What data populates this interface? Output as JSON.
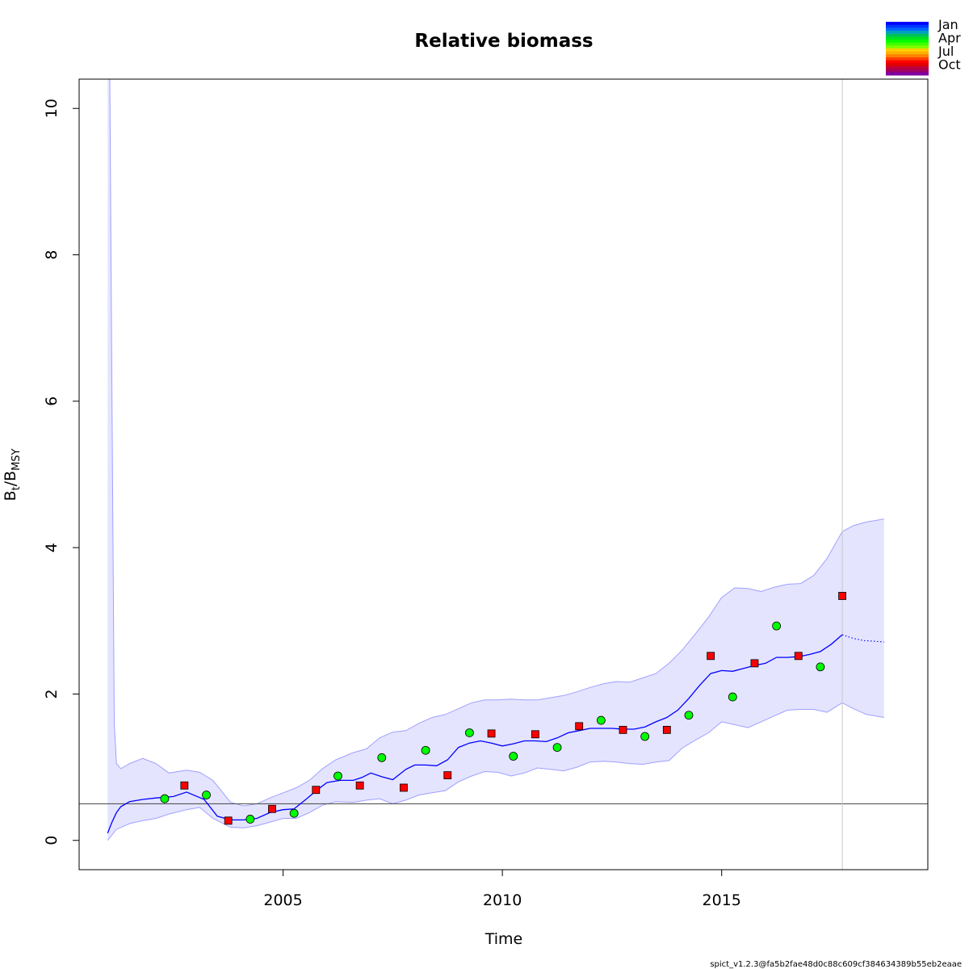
{
  "chart_data": {
    "type": "line",
    "title": "Relative biomass",
    "xlabel": "Time",
    "ylabel": {
      "main": "B",
      "sub1": "t",
      "sep": "/B",
      "sub2": "MSY"
    },
    "xlim": [
      2000.35,
      2019.7
    ],
    "ylim": [
      -0.4,
      10.4
    ],
    "x_ticks": [
      2005,
      2010,
      2015
    ],
    "y_ticks": [
      0,
      2,
      4,
      6,
      8,
      10
    ],
    "reference_line_y": 0.5,
    "vertical_line_x": 2017.75,
    "grid": false,
    "legend_position": "top-right",
    "month_legend": {
      "labels": [
        "Jan",
        "Apr",
        "Jul",
        "Oct"
      ],
      "colors": [
        "#0000FF",
        "#0033FF",
        "#0066FF",
        "#00A0C0",
        "#00C060",
        "#00E020",
        "#00FF00",
        "#40FF00",
        "#80FF00",
        "#FFD000",
        "#FFB000",
        "#FF8000",
        "#FF4000",
        "#FF0000",
        "#E00000",
        "#C0003A",
        "#A00060",
        "#8000A0"
      ]
    },
    "colors": {
      "ci_fill": "#E4E4FF",
      "ci_line": "#A0A0FF",
      "estimate": "#0000FF",
      "reference": "#555555",
      "vline": "#C8C8C8",
      "q1_points": "#00FF00",
      "q4_points": "#FF0000"
    },
    "estimate": {
      "x": [
        2001.0,
        2001.1,
        2001.2,
        2001.3,
        2001.5,
        2001.8,
        2002.1,
        2002.5,
        2002.8,
        2003.2,
        2003.5,
        2003.8,
        2004.1,
        2004.4,
        2004.7,
        2005.0,
        2005.25,
        2005.5,
        2005.8,
        2006.0,
        2006.3,
        2006.6,
        2006.8,
        2007.0,
        2007.25,
        2007.5,
        2007.8,
        2008.0,
        2008.25,
        2008.5,
        2008.75,
        2009.0,
        2009.25,
        2009.5,
        2009.75,
        2010.0,
        2010.25,
        2010.5,
        2010.75,
        2011.0,
        2011.25,
        2011.5,
        2011.75,
        2012.0,
        2012.25,
        2012.5,
        2012.75,
        2013.0,
        2013.25,
        2013.5,
        2013.75,
        2014.0,
        2014.25,
        2014.5,
        2014.75,
        2015.0,
        2015.25,
        2015.5,
        2015.75,
        2016.0,
        2016.25,
        2016.5,
        2016.75,
        2017.0,
        2017.25,
        2017.5,
        2017.75
      ],
      "y": [
        0.1,
        0.25,
        0.38,
        0.46,
        0.53,
        0.56,
        0.58,
        0.6,
        0.66,
        0.56,
        0.33,
        0.28,
        0.28,
        0.3,
        0.38,
        0.42,
        0.43,
        0.55,
        0.7,
        0.79,
        0.82,
        0.82,
        0.86,
        0.92,
        0.87,
        0.83,
        0.97,
        1.03,
        1.03,
        1.02,
        1.1,
        1.27,
        1.33,
        1.36,
        1.33,
        1.29,
        1.32,
        1.36,
        1.36,
        1.35,
        1.4,
        1.47,
        1.5,
        1.53,
        1.53,
        1.53,
        1.52,
        1.52,
        1.55,
        1.62,
        1.68,
        1.78,
        1.94,
        2.12,
        2.28,
        2.32,
        2.31,
        2.35,
        2.39,
        2.42,
        2.5,
        2.5,
        2.51,
        2.54,
        2.58,
        2.68,
        2.81
      ]
    },
    "forecast": {
      "x": [
        2017.75,
        2018.0,
        2018.25,
        2018.5,
        2018.7
      ],
      "y": [
        2.81,
        2.76,
        2.73,
        2.72,
        2.71
      ]
    },
    "ci_upper": {
      "x": [
        2001.0,
        2001.05,
        2001.1,
        2001.15,
        2001.2,
        2001.3,
        2001.5,
        2001.8,
        2002.1,
        2002.4,
        2002.8,
        2003.1,
        2003.4,
        2003.8,
        2004.1,
        2004.4,
        2004.7,
        2005.0,
        2005.3,
        2005.6,
        2005.9,
        2006.2,
        2006.6,
        2006.9,
        2007.2,
        2007.5,
        2007.8,
        2008.1,
        2008.4,
        2008.7,
        2009.0,
        2009.3,
        2009.6,
        2009.9,
        2010.2,
        2010.5,
        2010.8,
        2011.1,
        2011.4,
        2011.7,
        2012.0,
        2012.3,
        2012.6,
        2012.9,
        2013.2,
        2013.5,
        2013.8,
        2014.1,
        2014.4,
        2014.7,
        2015.0,
        2015.3,
        2015.6,
        2015.9,
        2016.2,
        2016.5,
        2016.8,
        2017.1,
        2017.4,
        2017.75,
        2018.0,
        2018.3,
        2018.7
      ],
      "y": [
        10.4,
        10.4,
        6.0,
        1.6,
        1.05,
        0.98,
        1.05,
        1.12,
        1.05,
        0.92,
        0.96,
        0.93,
        0.82,
        0.52,
        0.47,
        0.5,
        0.58,
        0.65,
        0.72,
        0.82,
        0.98,
        1.1,
        1.2,
        1.25,
        1.4,
        1.48,
        1.5,
        1.6,
        1.68,
        1.72,
        1.8,
        1.88,
        1.92,
        1.92,
        1.93,
        1.92,
        1.92,
        1.95,
        1.98,
        2.03,
        2.09,
        2.14,
        2.17,
        2.16,
        2.22,
        2.28,
        2.42,
        2.6,
        2.82,
        3.05,
        3.32,
        3.45,
        3.44,
        3.4,
        3.46,
        3.5,
        3.51,
        3.62,
        3.85,
        4.22,
        4.3,
        4.35,
        4.39
      ]
    },
    "ci_lower": {
      "x": [
        2001.0,
        2001.2,
        2001.5,
        2001.8,
        2002.1,
        2002.4,
        2002.8,
        2003.1,
        2003.4,
        2003.8,
        2004.1,
        2004.4,
        2004.7,
        2005.0,
        2005.3,
        2005.6,
        2005.9,
        2006.2,
        2006.6,
        2006.9,
        2007.2,
        2007.5,
        2007.8,
        2008.1,
        2008.4,
        2008.7,
        2009.0,
        2009.3,
        2009.6,
        2009.9,
        2010.2,
        2010.5,
        2010.8,
        2011.1,
        2011.4,
        2011.7,
        2012.0,
        2012.3,
        2012.6,
        2012.9,
        2013.2,
        2013.5,
        2013.8,
        2014.1,
        2014.4,
        2014.7,
        2015.0,
        2015.3,
        2015.6,
        2015.9,
        2016.2,
        2016.5,
        2016.8,
        2017.1,
        2017.4,
        2017.75,
        2018.0,
        2018.3,
        2018.7
      ],
      "y": [
        0.0,
        0.15,
        0.23,
        0.27,
        0.3,
        0.36,
        0.42,
        0.45,
        0.3,
        0.18,
        0.17,
        0.2,
        0.25,
        0.3,
        0.3,
        0.38,
        0.48,
        0.53,
        0.52,
        0.55,
        0.57,
        0.5,
        0.55,
        0.62,
        0.65,
        0.68,
        0.8,
        0.88,
        0.94,
        0.93,
        0.88,
        0.92,
        0.99,
        0.97,
        0.95,
        1.0,
        1.07,
        1.08,
        1.07,
        1.05,
        1.04,
        1.07,
        1.09,
        1.26,
        1.37,
        1.47,
        1.62,
        1.58,
        1.54,
        1.62,
        1.7,
        1.78,
        1.79,
        1.79,
        1.75,
        1.88,
        1.8,
        1.72,
        1.68
      ]
    },
    "series": [
      {
        "x": [
          2002.3,
          2003.25,
          2004.25,
          2005.25,
          2006.25,
          2007.25,
          2008.25,
          2009.25,
          2010.25,
          2011.25,
          2012.25,
          2013.25,
          2014.25,
          2015.25,
          2016.25,
          2017.25
        ],
        "y": [
          0.57,
          0.62,
          0.29,
          0.37,
          0.88,
          1.13,
          1.23,
          1.47,
          1.15,
          1.27,
          1.64,
          1.42,
          1.71,
          1.96,
          2.93,
          2.37
        ]
      },
      {
        "x": [
          2002.75,
          2003.75,
          2004.75,
          2005.75,
          2006.75,
          2007.75,
          2008.75,
          2009.75,
          2010.75,
          2011.75,
          2012.75,
          2013.75,
          2014.75,
          2015.75,
          2016.75,
          2017.75
        ],
        "y": [
          0.75,
          0.27,
          0.43,
          0.69,
          0.75,
          0.72,
          0.89,
          1.46,
          1.45,
          1.56,
          1.51,
          1.51,
          2.52,
          2.42,
          2.52,
          3.34
        ]
      }
    ]
  },
  "footer": "spict_v1.2.3@fa5b2fae48d0c88c609cf384634389b55eb2eaae"
}
